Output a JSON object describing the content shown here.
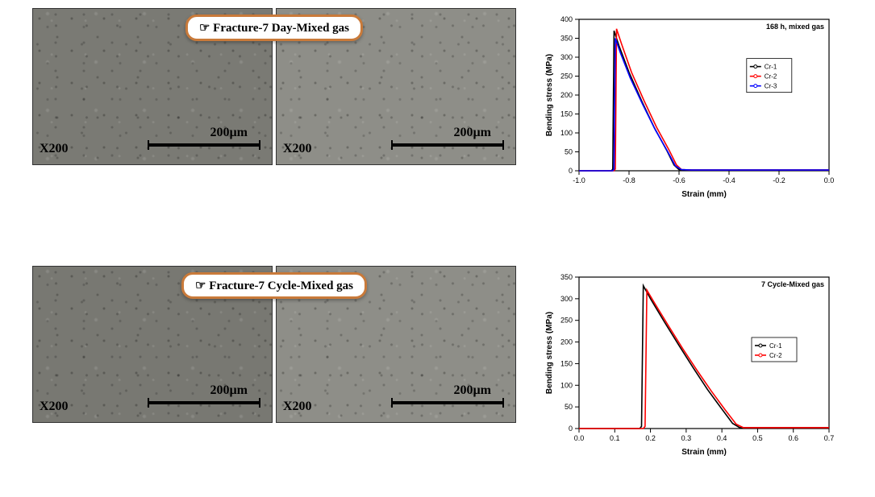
{
  "rows": [
    {
      "pill_label": "Fracture-7 Day-Mixed gas",
      "sem_left": {
        "mag": "X200",
        "scale_label": "200µm",
        "bg": "#7a7a74"
      },
      "sem_right": {
        "mag": "X200",
        "scale_label": "200µm",
        "bg": "#8c8c86"
      },
      "chart": {
        "type": "line",
        "title": "168 h, mixed gas",
        "xlabel": "Strain (mm)",
        "ylabel": "Bending stress (MPa)",
        "xlim": [
          -1.0,
          0.0
        ],
        "ylim": [
          0,
          400
        ],
        "xticks": [
          -1.0,
          -0.8,
          -0.6,
          -0.4,
          -0.2,
          0.0
        ],
        "yticks": [
          0,
          50,
          100,
          150,
          200,
          250,
          300,
          350,
          400
        ],
        "background_color": "#ffffff",
        "axis_color": "#000000",
        "title_fontsize": 9,
        "label_fontsize": 10,
        "tick_fontsize": 9,
        "legend_pos": {
          "x": 0.78,
          "y": 0.72
        },
        "series": [
          {
            "name": "Cr-1",
            "color": "#000000",
            "marker": "circle",
            "data": [
              [
                -1.0,
                0
              ],
              [
                -0.87,
                0
              ],
              [
                -0.865,
                5
              ],
              [
                -0.86,
                370
              ],
              [
                -0.84,
                330
              ],
              [
                -0.8,
                260
              ],
              [
                -0.75,
                185
              ],
              [
                -0.7,
                115
              ],
              [
                -0.65,
                55
              ],
              [
                -0.62,
                15
              ],
              [
                -0.6,
                3
              ],
              [
                -0.55,
                2
              ],
              [
                -0.45,
                2
              ],
              [
                -0.3,
                2
              ],
              [
                -0.1,
                2
              ],
              [
                0.0,
                2
              ]
            ]
          },
          {
            "name": "Cr-2",
            "color": "#ff0000",
            "marker": "circle",
            "data": [
              [
                -1.0,
                0
              ],
              [
                -0.86,
                0
              ],
              [
                -0.855,
                5
              ],
              [
                -0.85,
                375
              ],
              [
                -0.83,
                335
              ],
              [
                -0.79,
                260
              ],
              [
                -0.74,
                185
              ],
              [
                -0.69,
                115
              ],
              [
                -0.64,
                55
              ],
              [
                -0.61,
                15
              ],
              [
                -0.59,
                3
              ],
              [
                -0.55,
                2
              ],
              [
                -0.45,
                2
              ],
              [
                -0.3,
                2
              ],
              [
                -0.1,
                2
              ],
              [
                0.0,
                2
              ]
            ]
          },
          {
            "name": "Cr-3",
            "color": "#0000ff",
            "marker": "circle",
            "data": [
              [
                -1.0,
                0
              ],
              [
                -0.865,
                0
              ],
              [
                -0.86,
                5
              ],
              [
                -0.855,
                350
              ],
              [
                -0.835,
                312
              ],
              [
                -0.795,
                245
              ],
              [
                -0.745,
                175
              ],
              [
                -0.695,
                108
              ],
              [
                -0.645,
                50
              ],
              [
                -0.615,
                13
              ],
              [
                -0.59,
                3
              ],
              [
                -0.55,
                2
              ],
              [
                -0.45,
                2
              ],
              [
                -0.3,
                2
              ],
              [
                -0.1,
                2
              ],
              [
                0.0,
                2
              ]
            ]
          }
        ]
      }
    },
    {
      "pill_label": "Fracture-7 Cycle-Mixed gas",
      "sem_left": {
        "mag": "X200",
        "scale_label": "200µm",
        "bg": "#787872"
      },
      "sem_right": {
        "mag": "X200",
        "scale_label": "200µm",
        "bg": "#8a8a84"
      },
      "chart": {
        "type": "line",
        "title": "7 Cycle-Mixed gas",
        "xlabel": "Strain (mm)",
        "ylabel": "Bending stress (MPa)",
        "xlim": [
          0.0,
          0.7
        ],
        "ylim": [
          0,
          350
        ],
        "xticks": [
          0.0,
          0.1,
          0.2,
          0.3,
          0.4,
          0.5,
          0.6,
          0.7
        ],
        "yticks": [
          0,
          50,
          100,
          150,
          200,
          250,
          300,
          350
        ],
        "background_color": "#ffffff",
        "axis_color": "#000000",
        "title_fontsize": 9,
        "label_fontsize": 10,
        "tick_fontsize": 9,
        "legend_pos": {
          "x": 0.8,
          "y": 0.58
        },
        "series": [
          {
            "name": "Cr-1",
            "color": "#000000",
            "marker": "circle",
            "data": [
              [
                0.0,
                0
              ],
              [
                0.17,
                0
              ],
              [
                0.175,
                5
              ],
              [
                0.18,
                330
              ],
              [
                0.2,
                300
              ],
              [
                0.24,
                245
              ],
              [
                0.28,
                192
              ],
              [
                0.32,
                140
              ],
              [
                0.36,
                90
              ],
              [
                0.4,
                45
              ],
              [
                0.43,
                12
              ],
              [
                0.45,
                2
              ],
              [
                0.5,
                2
              ],
              [
                0.6,
                2
              ],
              [
                0.7,
                2
              ]
            ]
          },
          {
            "name": "Cr-2",
            "color": "#ff0000",
            "marker": "circle",
            "data": [
              [
                0.0,
                0
              ],
              [
                0.18,
                0
              ],
              [
                0.185,
                5
              ],
              [
                0.19,
                320
              ],
              [
                0.21,
                292
              ],
              [
                0.25,
                238
              ],
              [
                0.29,
                185
              ],
              [
                0.33,
                135
              ],
              [
                0.37,
                87
              ],
              [
                0.41,
                42
              ],
              [
                0.44,
                10
              ],
              [
                0.46,
                2
              ],
              [
                0.5,
                2
              ],
              [
                0.6,
                2
              ],
              [
                0.7,
                2
              ]
            ]
          }
        ]
      }
    }
  ]
}
